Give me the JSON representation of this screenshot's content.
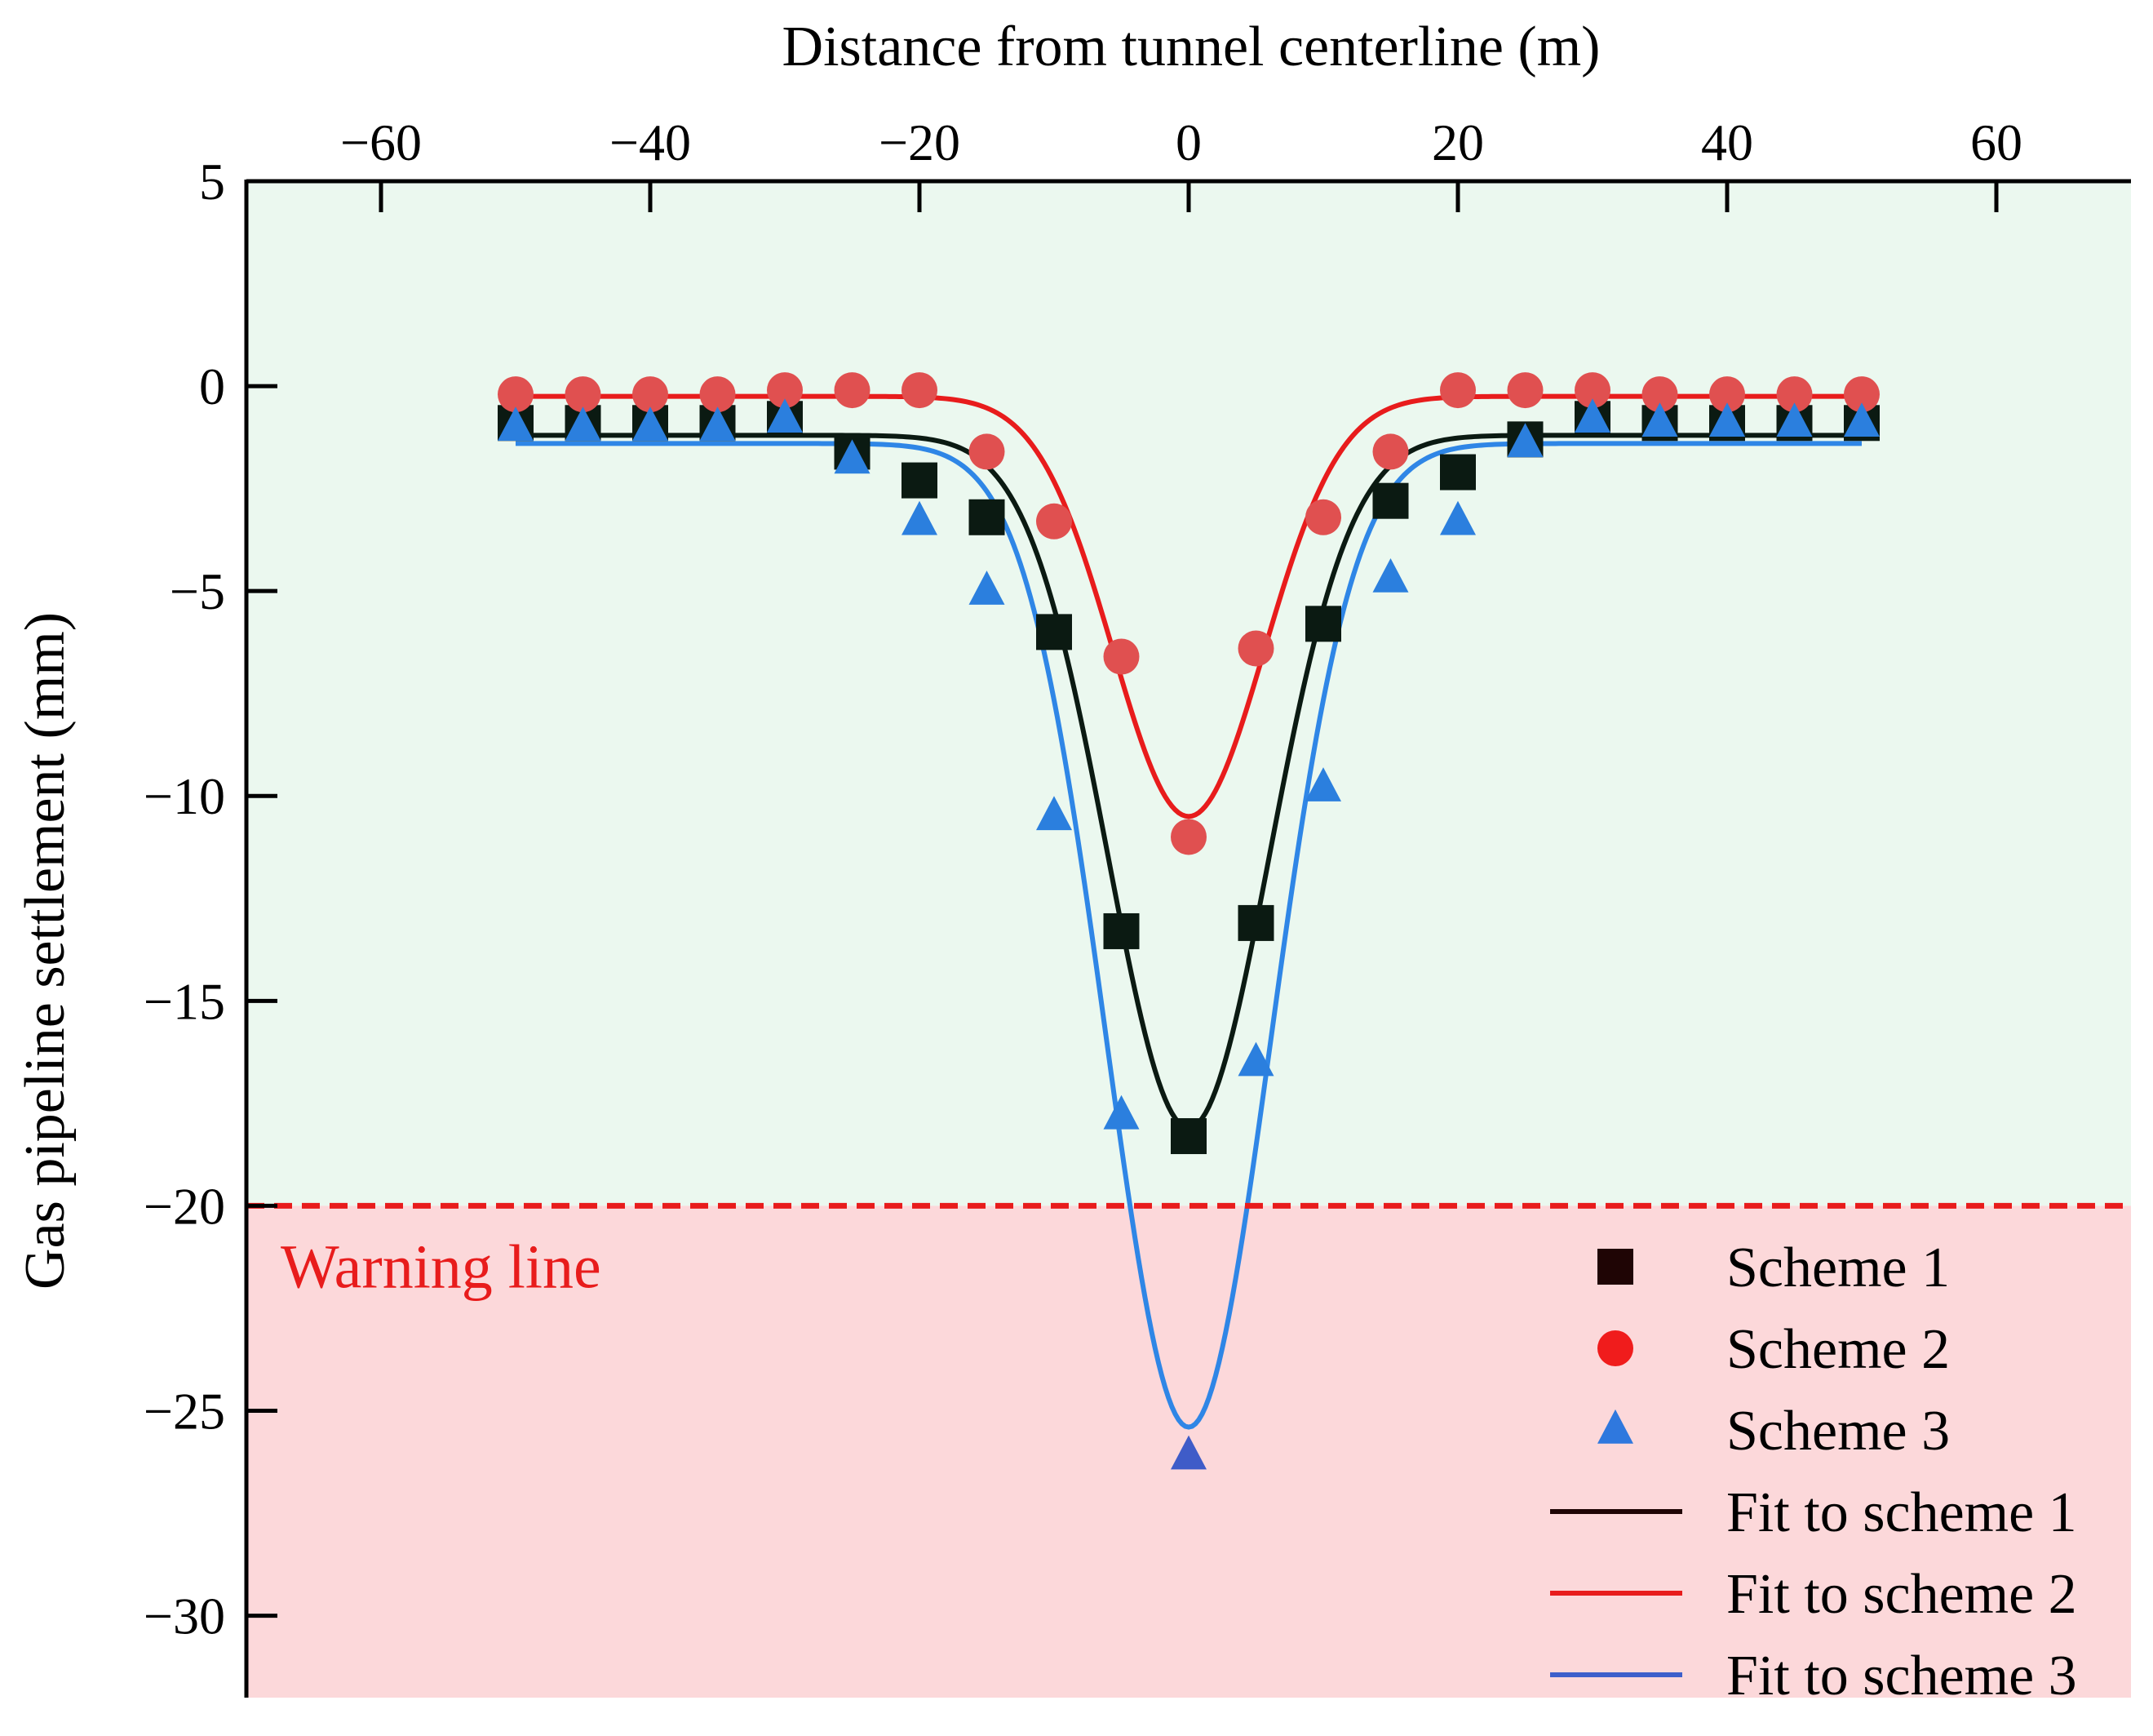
{
  "chart_data": {
    "type": "scatter",
    "title": "",
    "xlabel": "Distance from tunnel centerline (m)",
    "ylabel": "Gas pipeline settlement (mm)",
    "xlim": [
      -70,
      70
    ],
    "ylim": [
      -32,
      5
    ],
    "x_axis_position": "top",
    "x_ticks": [
      -60,
      -40,
      -20,
      0,
      20,
      40,
      60
    ],
    "x_tick_labels": [
      "−60",
      "−40",
      "−20",
      "0",
      "20",
      "40",
      "60"
    ],
    "y_ticks": [
      5,
      0,
      -5,
      -10,
      -15,
      -20,
      -25,
      -30
    ],
    "y_tick_labels": [
      "5",
      "0",
      "−5",
      "−10",
      "−15",
      "−20",
      "−25",
      "−30"
    ],
    "x": [
      -50,
      -45,
      -40,
      -35,
      -30,
      -25,
      -20,
      -15,
      -10,
      -5,
      0,
      5,
      10,
      15,
      20,
      25,
      30,
      35,
      40,
      45,
      50
    ],
    "series": [
      {
        "name": "Scheme 1",
        "marker": "square",
        "color": "#0b1a12",
        "values": [
          -0.9,
          -0.9,
          -0.9,
          -0.9,
          -0.8,
          -1.6,
          -2.3,
          -3.2,
          -6.0,
          -13.3,
          -18.3,
          -13.1,
          -5.8,
          -2.8,
          -2.1,
          -1.3,
          -0.8,
          -0.9,
          -0.9,
          -0.9,
          -0.9
        ]
      },
      {
        "name": "Scheme 2",
        "marker": "circle",
        "color": "#e05050",
        "values": [
          -0.2,
          -0.2,
          -0.2,
          -0.2,
          -0.1,
          -0.1,
          -0.1,
          -1.6,
          -3.3,
          -6.6,
          -11.0,
          -6.4,
          -3.2,
          -1.6,
          -0.1,
          -0.1,
          -0.1,
          -0.2,
          -0.2,
          -0.2,
          -0.2
        ]
      },
      {
        "name": "Scheme 3",
        "marker": "triangle",
        "color": "#2b7fde",
        "values": [
          -1.0,
          -1.0,
          -1.0,
          -1.0,
          -0.8,
          -1.8,
          -3.3,
          -5.0,
          -10.5,
          -17.8,
          -26.1,
          -16.5,
          -9.8,
          -4.7,
          -3.3,
          -1.4,
          -0.8,
          -0.9,
          -0.9,
          -0.9,
          -0.9
        ]
      }
    ],
    "fits": [
      {
        "name": "Fit to scheme 1",
        "color": "#0b1a12",
        "peak": -18.1,
        "baseline": -1.2,
        "sigma": 6.0,
        "x_range": [
          -50,
          50
        ]
      },
      {
        "name": "Fit to scheme 2",
        "color": "#e81c1c",
        "peak": -10.5,
        "baseline": -0.25,
        "sigma": 5.6,
        "x_range": [
          -50,
          50
        ]
      },
      {
        "name": "Fit to scheme 3",
        "color": "#2f86e6",
        "peak": -25.4,
        "baseline": -1.4,
        "sigma": 6.1,
        "x_range": [
          -50,
          50
        ]
      }
    ],
    "warning_line": {
      "value": -20,
      "label": "Warning line",
      "color": "#e81c1c"
    },
    "safe_zone_color": "#ebf8ef",
    "danger_zone_color": "#fcd8da",
    "legend_position": "bottom-right",
    "legend": [
      {
        "label": "Scheme 1",
        "kind": "square",
        "color": "#1f0505"
      },
      {
        "label": "Scheme 2",
        "kind": "circle",
        "color": "#f01c1c"
      },
      {
        "label": "Scheme 3",
        "kind": "triangle",
        "color": "#2f78de"
      },
      {
        "label": "Fit to scheme 1",
        "kind": "line",
        "color": "#1f0505"
      },
      {
        "label": "Fit to scheme 2",
        "kind": "line",
        "color": "#e81c1c"
      },
      {
        "label": "Fit to scheme 3",
        "kind": "line",
        "color": "#3d5fcb"
      }
    ]
  }
}
